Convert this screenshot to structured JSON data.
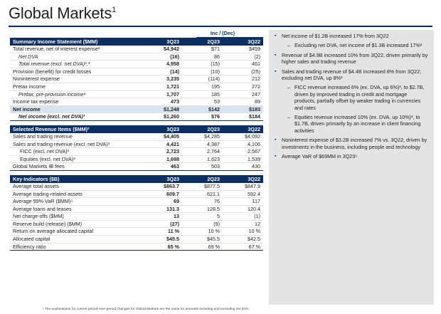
{
  "title": {
    "text": "Global Markets",
    "sup": "1"
  },
  "inc_dec_label": "Inc / (Dec)",
  "summary": {
    "headers": [
      "Summary Income Statement ($MM)",
      "3Q23",
      "2Q23",
      "3Q22"
    ],
    "rows": [
      [
        "Total revenue, net of interest expense²",
        "$4,942",
        "$71",
        "$459"
      ],
      [
        "Net DVA",
        "(16)",
        "86",
        "(2)"
      ],
      [
        "Total revenue (excl. net DVA)²,³",
        "4,958",
        "(15)",
        "461"
      ],
      [
        "Provision (benefit) for credit losses",
        "(14)",
        "(10)",
        "(25)"
      ],
      [
        "Noninterest expense",
        "3,235",
        "(114)",
        "212"
      ],
      [
        "Pretax income",
        "1,721",
        "195",
        "272"
      ],
      [
        "Pretax, pre-provision income⁴",
        "1,707",
        "185",
        "247"
      ],
      [
        "Income tax expense",
        "473",
        "53",
        "89"
      ],
      [
        "Net income",
        "$1,248",
        "$142",
        "$183"
      ],
      [
        "Net income (excl. net DVA)³",
        "$1,260",
        "$76",
        "$184"
      ]
    ]
  },
  "revenue": {
    "headers": [
      "Selected Revenue Items ($MM)²",
      "3Q23",
      "2Q23",
      "3Q22"
    ],
    "rows": [
      [
        "Sales and trading revenue",
        "$4,405",
        "$4,285",
        "$4,092"
      ],
      [
        "Sales and trading revenue (excl. net DVA)³",
        "4,421",
        "4,387",
        "4,106"
      ],
      [
        "FICC (excl. net DVA)³",
        "2,723",
        "2,764",
        "2,567"
      ],
      [
        "Equities (excl. net DVA)³",
        "1,698",
        "1,623",
        "1,539"
      ],
      [
        "Global Markets IB fees",
        "463",
        "503",
        "430"
      ]
    ]
  },
  "indicators": {
    "headers": [
      "Key Indicators ($B)",
      "3Q23",
      "2Q23",
      "3Q22"
    ],
    "rows": [
      [
        "Average total assets",
        "$863.7",
        "$877.5",
        "$847.9"
      ],
      [
        "Average trading-related assets",
        "609.7",
        "621.1",
        "592.4"
      ],
      [
        "Average 99% VaR ($MM)⁵",
        "69",
        "76",
        "117"
      ],
      [
        "Average loans and leases",
        "131.3",
        "128.5",
        "120.4"
      ],
      [
        "Net charge-offs ($MM)",
        "13",
        "5",
        "(1)"
      ],
      [
        "Reserve build (release) ($MM)",
        "(27)",
        "(9)",
        "12"
      ],
      [
        "Return on average allocated capital",
        "11 %",
        "10 %",
        "10 %"
      ],
      [
        "Allocated capital",
        "$45.5",
        "$45.5",
        "$42.5"
      ],
      [
        "Efficiency ratio",
        "65 %",
        "69 %",
        "67 %"
      ]
    ]
  },
  "bullets": [
    "Net income of $1.2B increased 17% from 3Q22",
    "Excluding net DVA, net income of $1.3B increased 17%³",
    "Revenue of $4.9B increased 10% from 3Q22, driven primarily by higher sales and trading revenue",
    "Sales and trading revenue of $4.4B increased 8% from 3Q22; excluding net DVA, up 8%³",
    "FICC revenue increased 6% (ex. DVA, up 6%)³, to $2.7B, driven by improved trading in credit and mortgage products, partially offset by weaker trading in currencies and rates",
    "Equities revenue increased 10% (ex. DVA, up 10%)³, to $1.7B, driven primarily by an increase in client financing activities",
    "Noninterest expense of $3.2B increased 7% vs. 3Q22, driven by investments in the business, including people and technology",
    "Average VaR of $69MM in 3Q23⁵"
  ],
  "footnote": "¹ The explanations for current period-over-period changes for Global Markets are the same for amounts including and excluding net DVA."
}
